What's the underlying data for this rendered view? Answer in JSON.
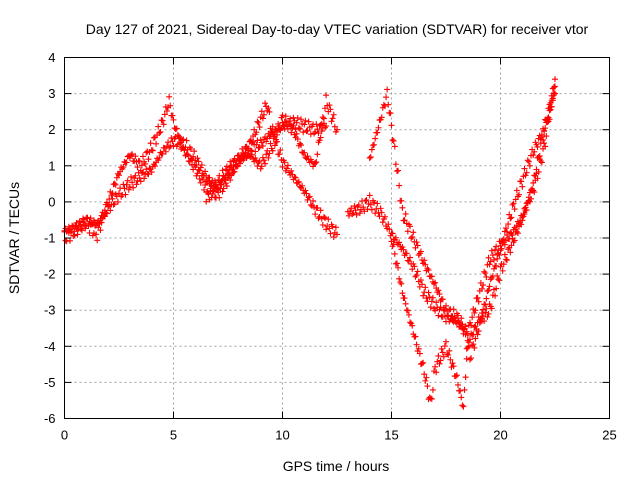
{
  "chart_data": {
    "type": "scatter",
    "title": "Day 127 of 2021, Sidereal Day-to-day VTEC variation (SDTVAR) for receiver vtor",
    "xlabel": "GPS time / hours",
    "ylabel": "SDTVAR / TECUs",
    "xlim": [
      0,
      25
    ],
    "ylim": [
      -6,
      4
    ],
    "x_ticks": [
      0,
      5,
      10,
      15,
      20,
      25
    ],
    "y_ticks": [
      -6,
      -5,
      -4,
      -3,
      -2,
      -1,
      0,
      1,
      2,
      3,
      4
    ],
    "x_tick_labels": [
      "0",
      "5",
      "10",
      "15",
      "20",
      "25"
    ],
    "y_tick_labels": [
      "-6",
      "-5",
      "-4",
      "-3",
      "-2",
      "-1",
      "0",
      "1",
      "2",
      "3",
      "4"
    ],
    "grid": true,
    "marker": "plus",
    "color": "#ff0000",
    "series": [
      {
        "x": [
          0.0,
          0.5,
          1.0,
          1.5,
          2.0,
          2.5,
          3.0,
          3.5,
          4.0,
          4.5,
          4.8,
          5.0,
          5.5,
          6.0,
          6.5,
          7.0,
          7.5,
          8.0,
          8.5,
          9.0,
          9.3,
          9.5,
          10.0,
          10.5,
          11.0,
          11.5,
          12.0,
          12.5
        ],
        "y": [
          -0.8,
          -0.7,
          -0.6,
          -0.9,
          0.0,
          0.8,
          1.3,
          1.0,
          1.5,
          2.2,
          2.8,
          2.2,
          1.4,
          0.9,
          0.4,
          0.2,
          0.6,
          1.1,
          1.6,
          2.3,
          2.7,
          2.0,
          1.1,
          0.7,
          0.3,
          -0.2,
          -0.6,
          -0.9
        ]
      },
      {
        "x": [
          0.0,
          0.5,
          1.0,
          1.5,
          2.0,
          2.5,
          3.0,
          3.5,
          4.0,
          4.5,
          5.0,
          5.5,
          6.0,
          6.5,
          7.0,
          7.5,
          8.0,
          8.5,
          9.0,
          9.5,
          10.0,
          10.5,
          11.0,
          11.5,
          12.0
        ],
        "y": [
          -1.0,
          -0.8,
          -0.5,
          -0.6,
          -0.2,
          0.2,
          0.5,
          0.7,
          0.9,
          1.4,
          1.7,
          1.6,
          1.2,
          0.7,
          0.4,
          0.8,
          1.2,
          1.5,
          1.6,
          1.9,
          2.1,
          2.2,
          2.1,
          2.0,
          2.1
        ]
      },
      {
        "x": [
          6.5,
          7.0,
          7.5,
          8.0,
          8.5,
          9.0,
          9.5,
          10.0,
          10.5,
          11.0,
          11.5,
          12.0,
          12.5
        ],
        "y": [
          0.1,
          0.5,
          0.9,
          1.2,
          1.3,
          1.0,
          1.5,
          2.3,
          2.0,
          1.3,
          1.0,
          2.8,
          2.0
        ]
      },
      {
        "x": [
          13.0,
          13.5,
          14.0,
          14.5,
          15.0,
          15.5,
          16.0,
          16.5,
          17.0,
          17.5,
          18.0,
          18.5,
          19.0,
          19.5,
          20.0,
          20.5,
          21.0,
          21.5,
          22.0,
          22.5
        ],
        "y": [
          -0.3,
          -0.2,
          0.0,
          -0.3,
          -0.9,
          -1.3,
          -1.8,
          -2.5,
          -2.9,
          -3.2,
          -3.3,
          -3.6,
          -2.6,
          -1.6,
          -1.2,
          -0.9,
          -0.4,
          0.3,
          1.5,
          3.4
        ]
      },
      {
        "x": [
          14.0,
          14.5,
          14.8,
          15.0,
          15.3,
          15.5,
          16.0,
          16.5,
          17.0,
          17.5,
          18.0,
          18.3,
          18.6,
          19.0,
          19.5,
          20.0,
          20.5,
          21.0,
          21.5,
          22.0,
          22.5
        ],
        "y": [
          1.2,
          2.3,
          3.0,
          2.1,
          0.7,
          -0.3,
          -1.0,
          -1.7,
          -2.3,
          -3.0,
          -3.2,
          -3.5,
          -4.3,
          -3.5,
          -2.3,
          -1.3,
          -0.3,
          0.6,
          1.4,
          2.0,
          3.0
        ]
      },
      {
        "x": [
          15.0,
          15.5,
          16.0,
          16.5,
          16.8,
          17.0,
          17.5,
          18.0,
          18.3,
          18.5,
          19.0,
          19.5,
          20.0,
          20.5,
          21.0,
          21.5,
          22.0,
          22.5
        ],
        "y": [
          -1.0,
          -2.5,
          -3.6,
          -4.7,
          -5.6,
          -4.6,
          -4.0,
          -4.9,
          -5.7,
          -3.9,
          -3.3,
          -3.0,
          -1.9,
          -1.2,
          -0.5,
          0.5,
          2.0,
          3.2
        ]
      }
    ]
  }
}
